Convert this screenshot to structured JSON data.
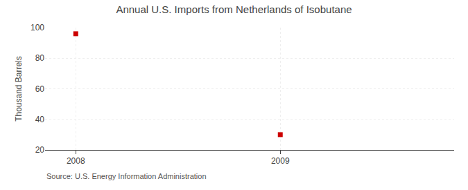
{
  "chart_data": {
    "type": "scatter",
    "title": "Annual U.S. Imports from Netherlands of Isobutane",
    "ylabel": "Thousand Barrels",
    "annotations": [
      "Source: U.S. Energy Information Administration"
    ],
    "x": [
      2008,
      2009
    ],
    "values": [
      96,
      30
    ],
    "color": "#cc0000",
    "marker": "square",
    "xlim": [
      2007.85,
      2009.85
    ],
    "xticks": [
      2008,
      2009
    ],
    "ylim": [
      20,
      100
    ],
    "yticks": [
      20,
      40,
      60,
      80,
      100
    ],
    "grid": true
  }
}
